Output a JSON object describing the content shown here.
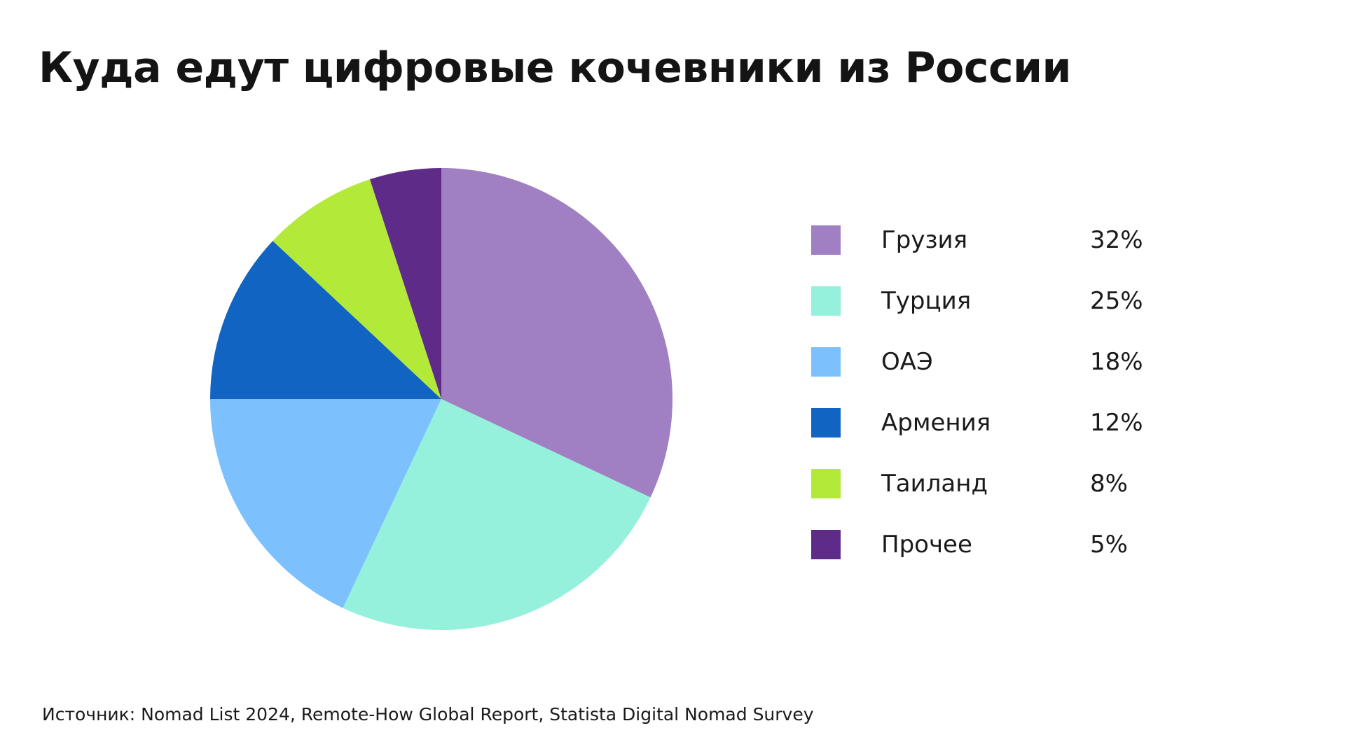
{
  "title": "Куда едут цифровые кочевники из России",
  "source": "Источник: Nomad List 2024, Remote-How Global Report, Statista Digital Nomad Survey",
  "chart_data": {
    "type": "pie",
    "title": "Куда едут цифровые кочевники из России",
    "legend_position": "right",
    "categories": [
      "Грузия",
      "Турция",
      "ОАЭ",
      "Армения",
      "Таиланд",
      "Прочее"
    ],
    "values": [
      32,
      25,
      18,
      12,
      8,
      5
    ],
    "value_labels": [
      "32%",
      "25%",
      "18%",
      "12%",
      "8%",
      "5%"
    ],
    "colors": [
      "#a07fc2",
      "#95f0dc",
      "#7cc1fd",
      "#1264c2",
      "#b3ea39",
      "#5f2b88"
    ]
  }
}
